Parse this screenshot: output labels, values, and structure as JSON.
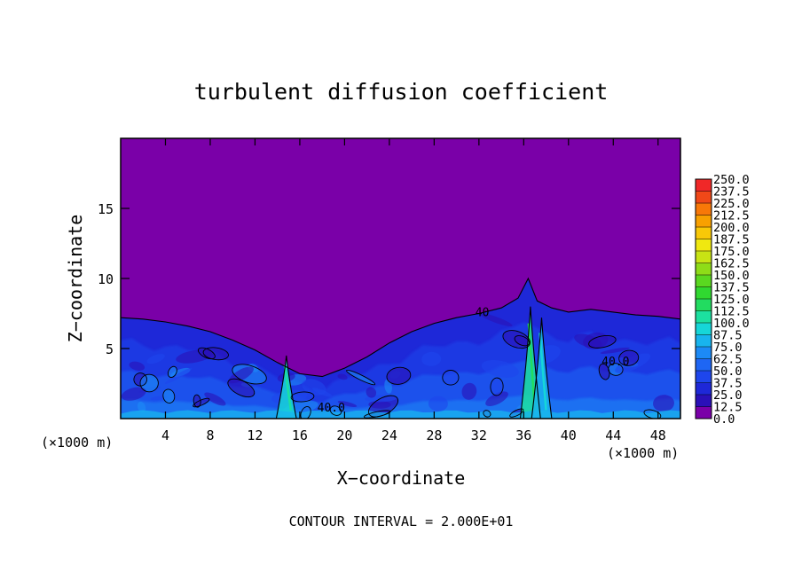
{
  "chart_data": {
    "type": "heatmap",
    "title": "turbulent diffusion coefficient",
    "xlabel": "X−coordinate",
    "ylabel": "Z−coordinate",
    "x_unit_left": "(×1000 m)",
    "x_unit_right": "(×1000 m)",
    "xlim": [
      0,
      50
    ],
    "ylim": [
      0,
      20
    ],
    "x_ticks": [
      4,
      8,
      12,
      16,
      20,
      24,
      28,
      32,
      36,
      40,
      44,
      48
    ],
    "y_ticks": [
      5,
      10,
      15
    ],
    "contour_interval_text": "CONTOUR INTERVAL = 2.000E+01",
    "contour_labels": [
      {
        "text": "40.0",
        "x": 44.2,
        "z": 3.8
      },
      {
        "text": "40.0",
        "x": 18.8,
        "z": 0.5
      },
      {
        "text": "40",
        "x": 32.3,
        "z": 7.3
      }
    ],
    "colorbar": {
      "levels": [
        0.0,
        12.5,
        25.0,
        37.5,
        50.0,
        62.5,
        75.0,
        87.5,
        100.0,
        112.5,
        125.0,
        137.5,
        150.0,
        162.5,
        175.0,
        187.5,
        200.0,
        212.5,
        225.0,
        237.5,
        250.0
      ],
      "labels": [
        "0.0",
        "12.5",
        "25.0",
        "37.5",
        "50.0",
        "62.5",
        "75.0",
        "87.5",
        "100.0",
        "112.5",
        "125.0",
        "137.5",
        "150.0",
        "162.5",
        "175.0",
        "187.5",
        "200.0",
        "212.5",
        "225.0",
        "237.5",
        "250.0"
      ],
      "colors": [
        "#7a00a8",
        "#2a10b8",
        "#1e28d8",
        "#1e46ec",
        "#1e66f4",
        "#1c8af6",
        "#18b4ee",
        "#16d6d8",
        "#1ce0a0",
        "#22dc60",
        "#30d830",
        "#5ad820",
        "#8edc18",
        "#c8e414",
        "#f0e810",
        "#f8c808",
        "#f8a000",
        "#f87808",
        "#f04818",
        "#f02828",
        "#f07878"
      ]
    },
    "turbulent_layer_top": [
      [
        0,
        7.2
      ],
      [
        2,
        7.1
      ],
      [
        4,
        6.9
      ],
      [
        6,
        6.6
      ],
      [
        8,
        6.2
      ],
      [
        10,
        5.6
      ],
      [
        12,
        4.9
      ],
      [
        14,
        4.0
      ],
      [
        16,
        3.2
      ],
      [
        18,
        3.0
      ],
      [
        20,
        3.6
      ],
      [
        22,
        4.4
      ],
      [
        24,
        5.4
      ],
      [
        26,
        6.2
      ],
      [
        28,
        6.8
      ],
      [
        30,
        7.2
      ],
      [
        32,
        7.5
      ],
      [
        34,
        7.9
      ],
      [
        35.5,
        8.6
      ],
      [
        36.4,
        10.0
      ],
      [
        37.2,
        8.4
      ],
      [
        38.5,
        7.9
      ],
      [
        40,
        7.6
      ],
      [
        42,
        7.8
      ],
      [
        44,
        7.6
      ],
      [
        46,
        7.4
      ],
      [
        48,
        7.3
      ],
      [
        50,
        7.1
      ]
    ],
    "high_value_plumes": [
      {
        "x": 14.8,
        "z_top": 4.5,
        "peak": 90
      },
      {
        "x": 36.6,
        "z_top": 8.0,
        "peak": 100
      },
      {
        "x": 37.6,
        "z_top": 7.2,
        "peak": 75
      }
    ]
  }
}
